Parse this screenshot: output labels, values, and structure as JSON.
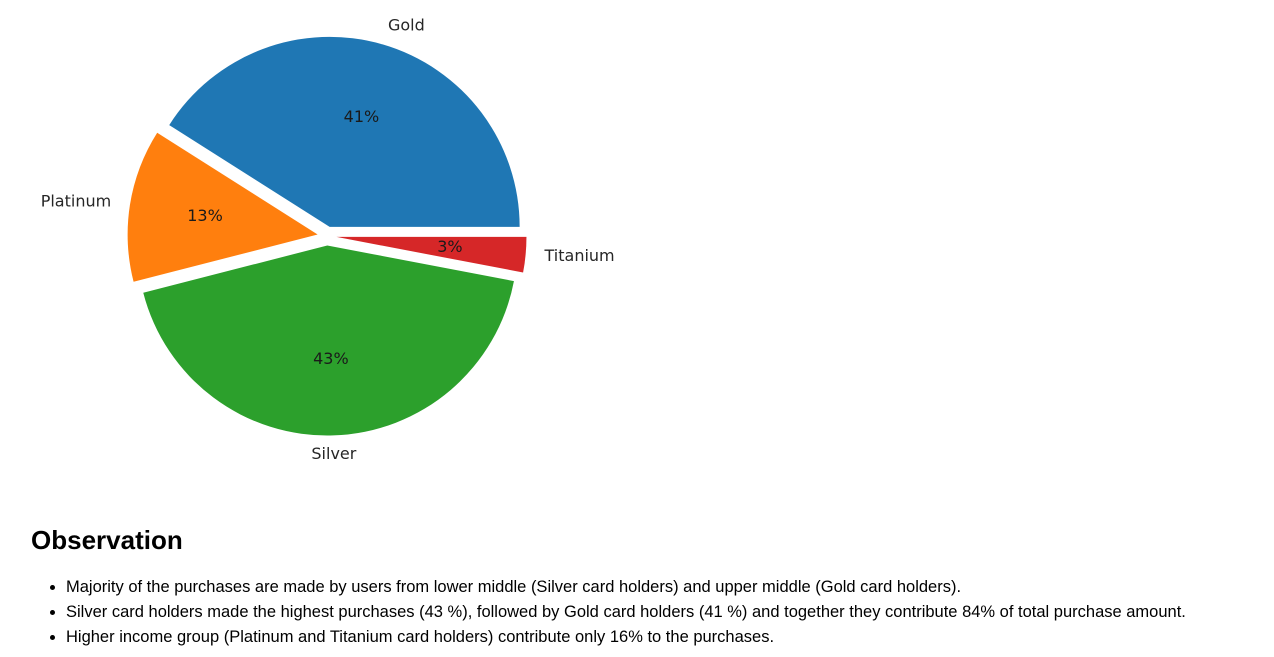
{
  "chart_data": {
    "type": "pie",
    "title": "",
    "categories": [
      "Gold",
      "Platinum",
      "Silver",
      "Titanium"
    ],
    "values": [
      41,
      13,
      43,
      3
    ],
    "labels": [
      "41%",
      "13%",
      "43%",
      "3%"
    ],
    "colors": [
      "#1f77b4",
      "#ff7f0e",
      "#2ca02c",
      "#d62728"
    ],
    "exploded": true,
    "legend": "none"
  },
  "observation": {
    "title": "Observation",
    "points": [
      "Majority of the purchases are made by users from lower middle (Silver card holders) and upper middle (Gold card holders).",
      "Silver card holders made the highest purchases (43 %), followed by Gold card holders (41 %) and together they contribute 84% of total purchase amount.",
      "Higher income group (Platinum and Titanium card holders) contribute only 16% to the purchases."
    ]
  }
}
